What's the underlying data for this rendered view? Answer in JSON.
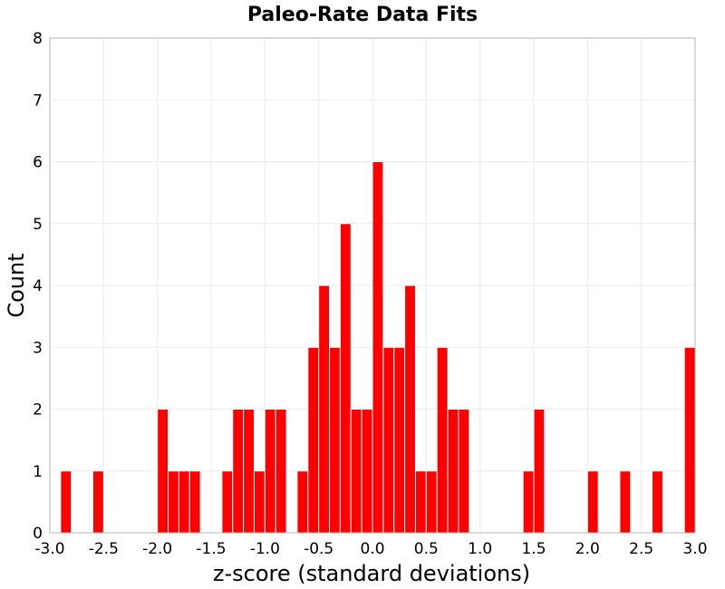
{
  "chart_data": {
    "type": "bar",
    "title": "Paleo-Rate Data Fits",
    "xlabel": "z-score (standard deviations)",
    "ylabel": "Count",
    "xlim": [
      -3.0,
      3.0
    ],
    "ylim": [
      0,
      8
    ],
    "bin_width": 0.1,
    "x_ticks": [
      "-3.0",
      "-2.5",
      "-2.0",
      "-1.5",
      "-1.0",
      "-0.5",
      "0.0",
      "0.5",
      "1.0",
      "1.5",
      "2.0",
      "2.5",
      "3.0"
    ],
    "x_tick_values": [
      -3.0,
      -2.5,
      -2.0,
      -1.5,
      -1.0,
      -0.5,
      0.0,
      0.5,
      1.0,
      1.5,
      2.0,
      2.5,
      3.0
    ],
    "y_ticks": [
      "0",
      "1",
      "2",
      "3",
      "4",
      "5",
      "6",
      "7",
      "8"
    ],
    "y_tick_values": [
      0,
      1,
      2,
      3,
      4,
      5,
      6,
      7,
      8
    ],
    "grid": true,
    "bar_color": "#ff0000",
    "bins": [
      {
        "x": -2.85,
        "value": 1
      },
      {
        "x": -2.55,
        "value": 1
      },
      {
        "x": -1.95,
        "value": 2
      },
      {
        "x": -1.85,
        "value": 1
      },
      {
        "x": -1.75,
        "value": 1
      },
      {
        "x": -1.65,
        "value": 1
      },
      {
        "x": -1.35,
        "value": 1
      },
      {
        "x": -1.25,
        "value": 2
      },
      {
        "x": -1.15,
        "value": 2
      },
      {
        "x": -1.05,
        "value": 1
      },
      {
        "x": -0.95,
        "value": 2
      },
      {
        "x": -0.85,
        "value": 2
      },
      {
        "x": -0.65,
        "value": 1
      },
      {
        "x": -0.55,
        "value": 3
      },
      {
        "x": -0.45,
        "value": 4
      },
      {
        "x": -0.35,
        "value": 3
      },
      {
        "x": -0.25,
        "value": 5
      },
      {
        "x": -0.15,
        "value": 2
      },
      {
        "x": -0.05,
        "value": 2
      },
      {
        "x": 0.05,
        "value": 6
      },
      {
        "x": 0.15,
        "value": 3
      },
      {
        "x": 0.25,
        "value": 3
      },
      {
        "x": 0.35,
        "value": 4
      },
      {
        "x": 0.45,
        "value": 1
      },
      {
        "x": 0.55,
        "value": 1
      },
      {
        "x": 0.65,
        "value": 3
      },
      {
        "x": 0.75,
        "value": 2
      },
      {
        "x": 0.85,
        "value": 2
      },
      {
        "x": 1.45,
        "value": 1
      },
      {
        "x": 1.55,
        "value": 2
      },
      {
        "x": 2.05,
        "value": 1
      },
      {
        "x": 2.35,
        "value": 1
      },
      {
        "x": 2.65,
        "value": 1
      },
      {
        "x": 2.95,
        "value": 3
      }
    ]
  }
}
